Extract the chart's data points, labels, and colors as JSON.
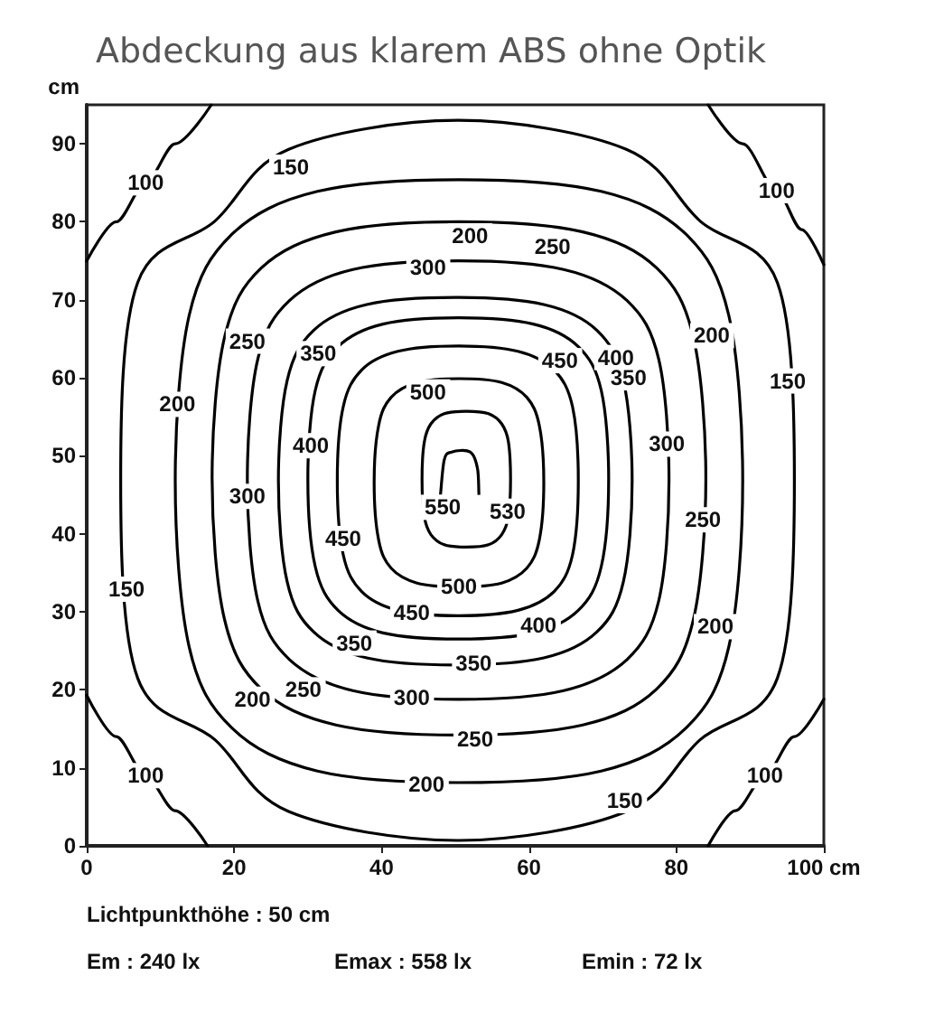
{
  "chart_data": {
    "type": "line",
    "title": "Abdeckung aus klarem ABS ohne Optik",
    "ylabel": "cm",
    "xlim": [
      0,
      100
    ],
    "ylim": [
      0,
      95
    ],
    "xticks": [
      0,
      20,
      40,
      60,
      80,
      {
        "value": 100,
        "label": "100 cm"
      }
    ],
    "yticks": [
      0,
      10,
      20,
      30,
      40,
      50,
      60,
      70,
      80,
      90
    ],
    "grid": false,
    "marker": "none",
    "line_style": "solid",
    "series": [
      {
        "color": "#000000",
        "x": [
          0,
          4,
          8,
          12,
          16.9
        ],
        "values": [
          75,
          80,
          85,
          90,
          95
        ]
      },
      {
        "color": "#000000",
        "x": [
          84.3,
          89,
          93.6,
          97,
          100
        ],
        "values": [
          95,
          90,
          84,
          79,
          74.5
        ]
      },
      {
        "color": "#000000",
        "x": [
          0,
          4,
          8,
          12,
          16.4
        ],
        "values": [
          19.3,
          14,
          9,
          4.5,
          0
        ]
      },
      {
        "color": "#000000",
        "x": [
          84.3,
          88,
          92,
          96,
          100
        ],
        "values": [
          0,
          4.5,
          9,
          14,
          18.8
        ]
      }
    ],
    "annotations": [
      {
        "text": "100",
        "x": 8,
        "y": 85
      },
      {
        "text": "100",
        "x": 93.6,
        "y": 84
      },
      {
        "text": "100",
        "x": 8,
        "y": 9
      },
      {
        "text": "100",
        "x": 92,
        "y": 9
      },
      "150",
      "200",
      "250",
      "300",
      "200",
      "250",
      "350",
      "450",
      "400",
      "350",
      "150",
      "200",
      "500",
      "400",
      "300",
      "300",
      "550",
      "530",
      "250",
      "450",
      "500",
      "150",
      "450",
      "400",
      "200",
      "350",
      "350",
      "300",
      "200",
      "250",
      "250",
      "200",
      "150",
      "Lichtpunkthöhe : 50 cm",
      "Em : 240 lx",
      "Emax : 558 lx",
      "Emin : 72 lx"
    ]
  }
}
